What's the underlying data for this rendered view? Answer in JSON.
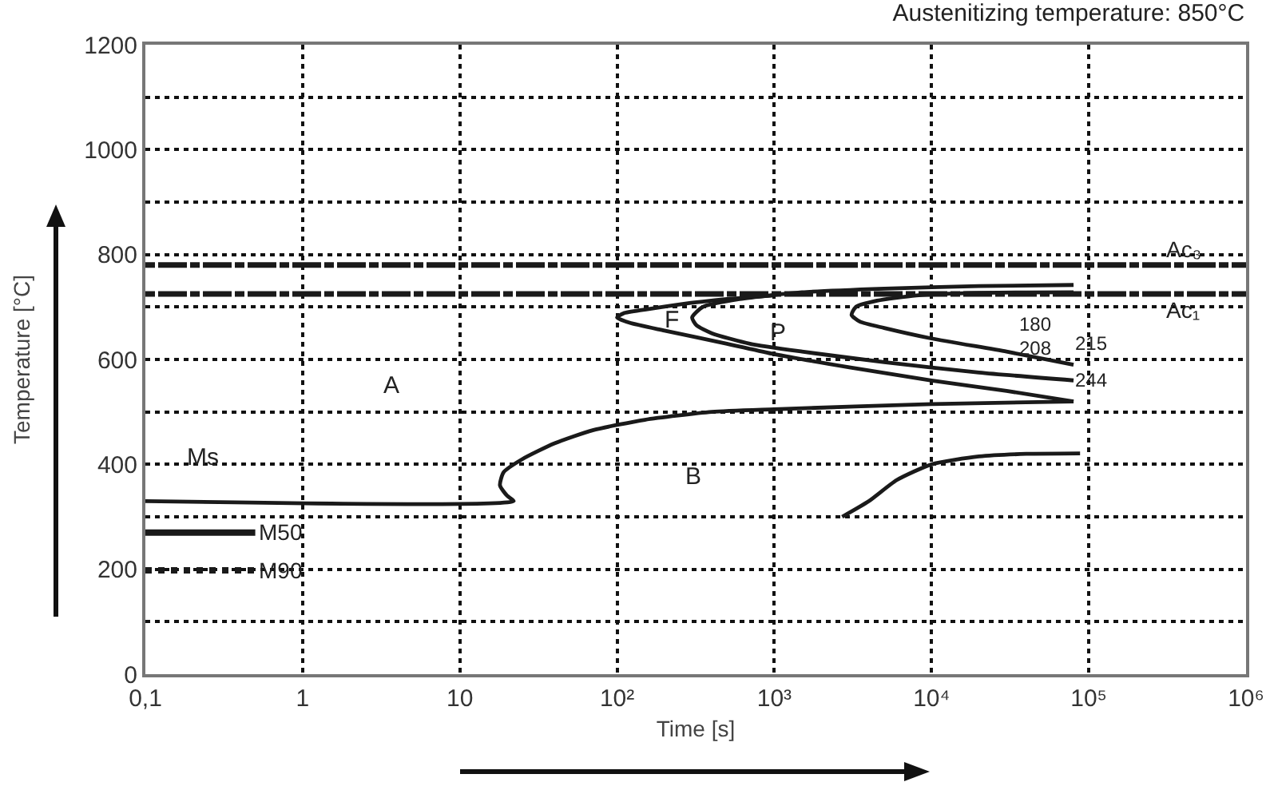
{
  "chart_data": {
    "type": "line",
    "title": "Austenitizing temperature: 850°C",
    "xlabel": "Time [s]",
    "ylabel": "Temperature [°C]",
    "log": "x",
    "grid": true,
    "xlim": [
      0.1,
      1000000
    ],
    "xticks": [
      {
        "value": 0.1,
        "label": "0,1"
      },
      1,
      10,
      {
        "value": 100,
        "label": "10²"
      },
      {
        "value": 1000,
        "label": "10³"
      },
      {
        "value": 10000,
        "label": "10⁴"
      },
      {
        "value": 100000,
        "label": "10⁵"
      },
      {
        "value": 1000000,
        "label": "10⁶"
      }
    ],
    "ylim": [
      0,
      1200
    ],
    "yticks": [
      0,
      {
        "value": 100,
        "label": null
      },
      200,
      {
        "value": 300,
        "label": null
      },
      400,
      {
        "value": 500,
        "label": null
      },
      600,
      {
        "value": 700,
        "label": null
      },
      800,
      {
        "value": 900,
        "label": null
      },
      1000,
      {
        "value": 1100,
        "label": null
      },
      1200
    ],
    "series": [
      {
        "color": "#1a1a1a",
        "x": [
          0.1,
          22,
          20,
          18,
          19,
          25,
          40,
          70,
          150,
          400,
          1000,
          10000,
          80000
        ],
        "values": [
          330,
          330,
          340,
          360,
          385,
          410,
          440,
          465,
          485,
          500,
          505,
          515,
          520
        ]
      },
      {
        "color": "#1a1a1a",
        "x": [
          1000,
          500,
          250,
          150,
          110,
          100,
          120,
          200,
          500,
          1000,
          3000,
          10000,
          30000,
          80000
        ],
        "values": [
          722,
          715,
          705,
          695,
          688,
          680,
          670,
          655,
          630,
          610,
          585,
          560,
          540,
          520
        ]
      },
      {
        "color": "#1a1a1a",
        "x": [
          80000,
          20000,
          5000,
          1500,
          600,
          350,
          300,
          320,
          400,
          700,
          1500,
          5000,
          20000,
          80000
        ],
        "values": [
          742,
          740,
          735,
          728,
          715,
          700,
          680,
          665,
          650,
          630,
          615,
          595,
          575,
          560
        ]
      },
      {
        "color": "#1a1a1a",
        "x": [
          80000,
          20000,
          8000,
          4500,
          3300,
          3100,
          3500,
          5000,
          10000,
          30000,
          80000
        ],
        "values": [
          728,
          727,
          722,
          712,
          700,
          685,
          672,
          660,
          640,
          615,
          590
        ]
      },
      {
        "color": "#1a1a1a",
        "x": [
          2700,
          4000,
          6000,
          10000,
          20000,
          40000,
          88000
        ],
        "values": [
          300,
          330,
          370,
          400,
          415,
          420,
          421
        ]
      },
      {
        "name": "M50",
        "color": "#1a1a1a",
        "x": [
          0.1,
          0.5
        ],
        "values": [
          270,
          270
        ]
      },
      {
        "name": "M90",
        "color": "#1a1a1a",
        "line_style": "dotted",
        "x": [
          0.1,
          0.5
        ],
        "values": [
          198,
          198
        ]
      }
    ],
    "ref_lines": [
      {
        "axis": "y",
        "value": 780,
        "label": "Ac₃",
        "line_style": "dashed",
        "color": "#1a1a1a"
      },
      {
        "axis": "y",
        "value": 725,
        "label": "Ac₁",
        "line_style": "dashed",
        "color": "#1a1a1a"
      }
    ],
    "annotations": [
      "Ms",
      "A",
      "B",
      "F",
      "P",
      "180",
      "208",
      "215",
      "244"
    ]
  }
}
